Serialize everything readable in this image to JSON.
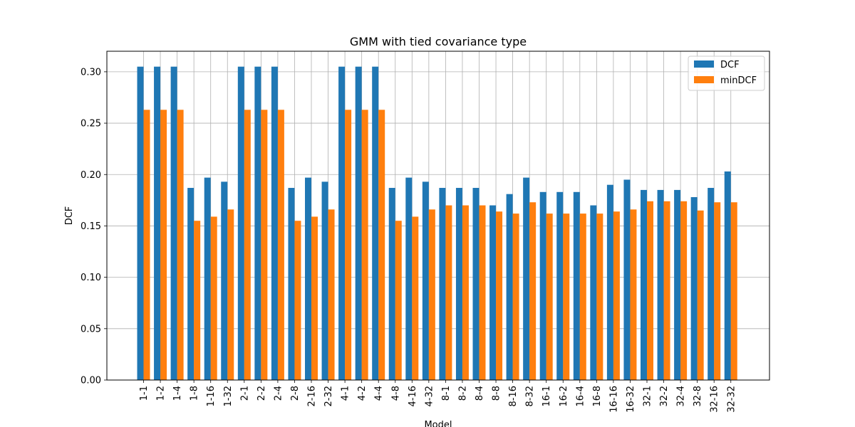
{
  "chart_data": {
    "type": "bar",
    "title": "GMM with tied covariance type",
    "xlabel": "Model",
    "ylabel": "DCF",
    "ylim": [
      0,
      0.32
    ],
    "yticks": [
      0.0,
      0.05,
      0.1,
      0.15,
      0.2,
      0.25,
      0.3
    ],
    "grid": true,
    "legend_position": "top-right",
    "categories": [
      "1-1",
      "1-2",
      "1-4",
      "1-8",
      "1-16",
      "1-32",
      "2-1",
      "2-2",
      "2-4",
      "2-8",
      "2-16",
      "2-32",
      "4-1",
      "4-2",
      "4-4",
      "4-8",
      "4-16",
      "4-32",
      "8-1",
      "8-2",
      "8-4",
      "8-8",
      "8-16",
      "8-32",
      "16-1",
      "16-2",
      "16-4",
      "16-8",
      "16-16",
      "16-32",
      "32-1",
      "32-2",
      "32-4",
      "32-8",
      "32-16",
      "32-32"
    ],
    "series": [
      {
        "name": "DCF",
        "color": "#1f77b4",
        "values": [
          0.305,
          0.305,
          0.305,
          0.187,
          0.197,
          0.193,
          0.305,
          0.305,
          0.305,
          0.187,
          0.197,
          0.193,
          0.305,
          0.305,
          0.305,
          0.187,
          0.197,
          0.193,
          0.187,
          0.187,
          0.187,
          0.17,
          0.181,
          0.197,
          0.183,
          0.183,
          0.183,
          0.17,
          0.19,
          0.195,
          0.185,
          0.185,
          0.185,
          0.178,
          0.187,
          0.203
        ]
      },
      {
        "name": "minDCF",
        "color": "#ff7f0e",
        "values": [
          0.263,
          0.263,
          0.263,
          0.155,
          0.159,
          0.166,
          0.263,
          0.263,
          0.263,
          0.155,
          0.159,
          0.166,
          0.263,
          0.263,
          0.263,
          0.155,
          0.159,
          0.166,
          0.17,
          0.17,
          0.17,
          0.164,
          0.162,
          0.173,
          0.162,
          0.162,
          0.162,
          0.162,
          0.164,
          0.166,
          0.174,
          0.174,
          0.174,
          0.165,
          0.173,
          0.173
        ]
      }
    ]
  }
}
